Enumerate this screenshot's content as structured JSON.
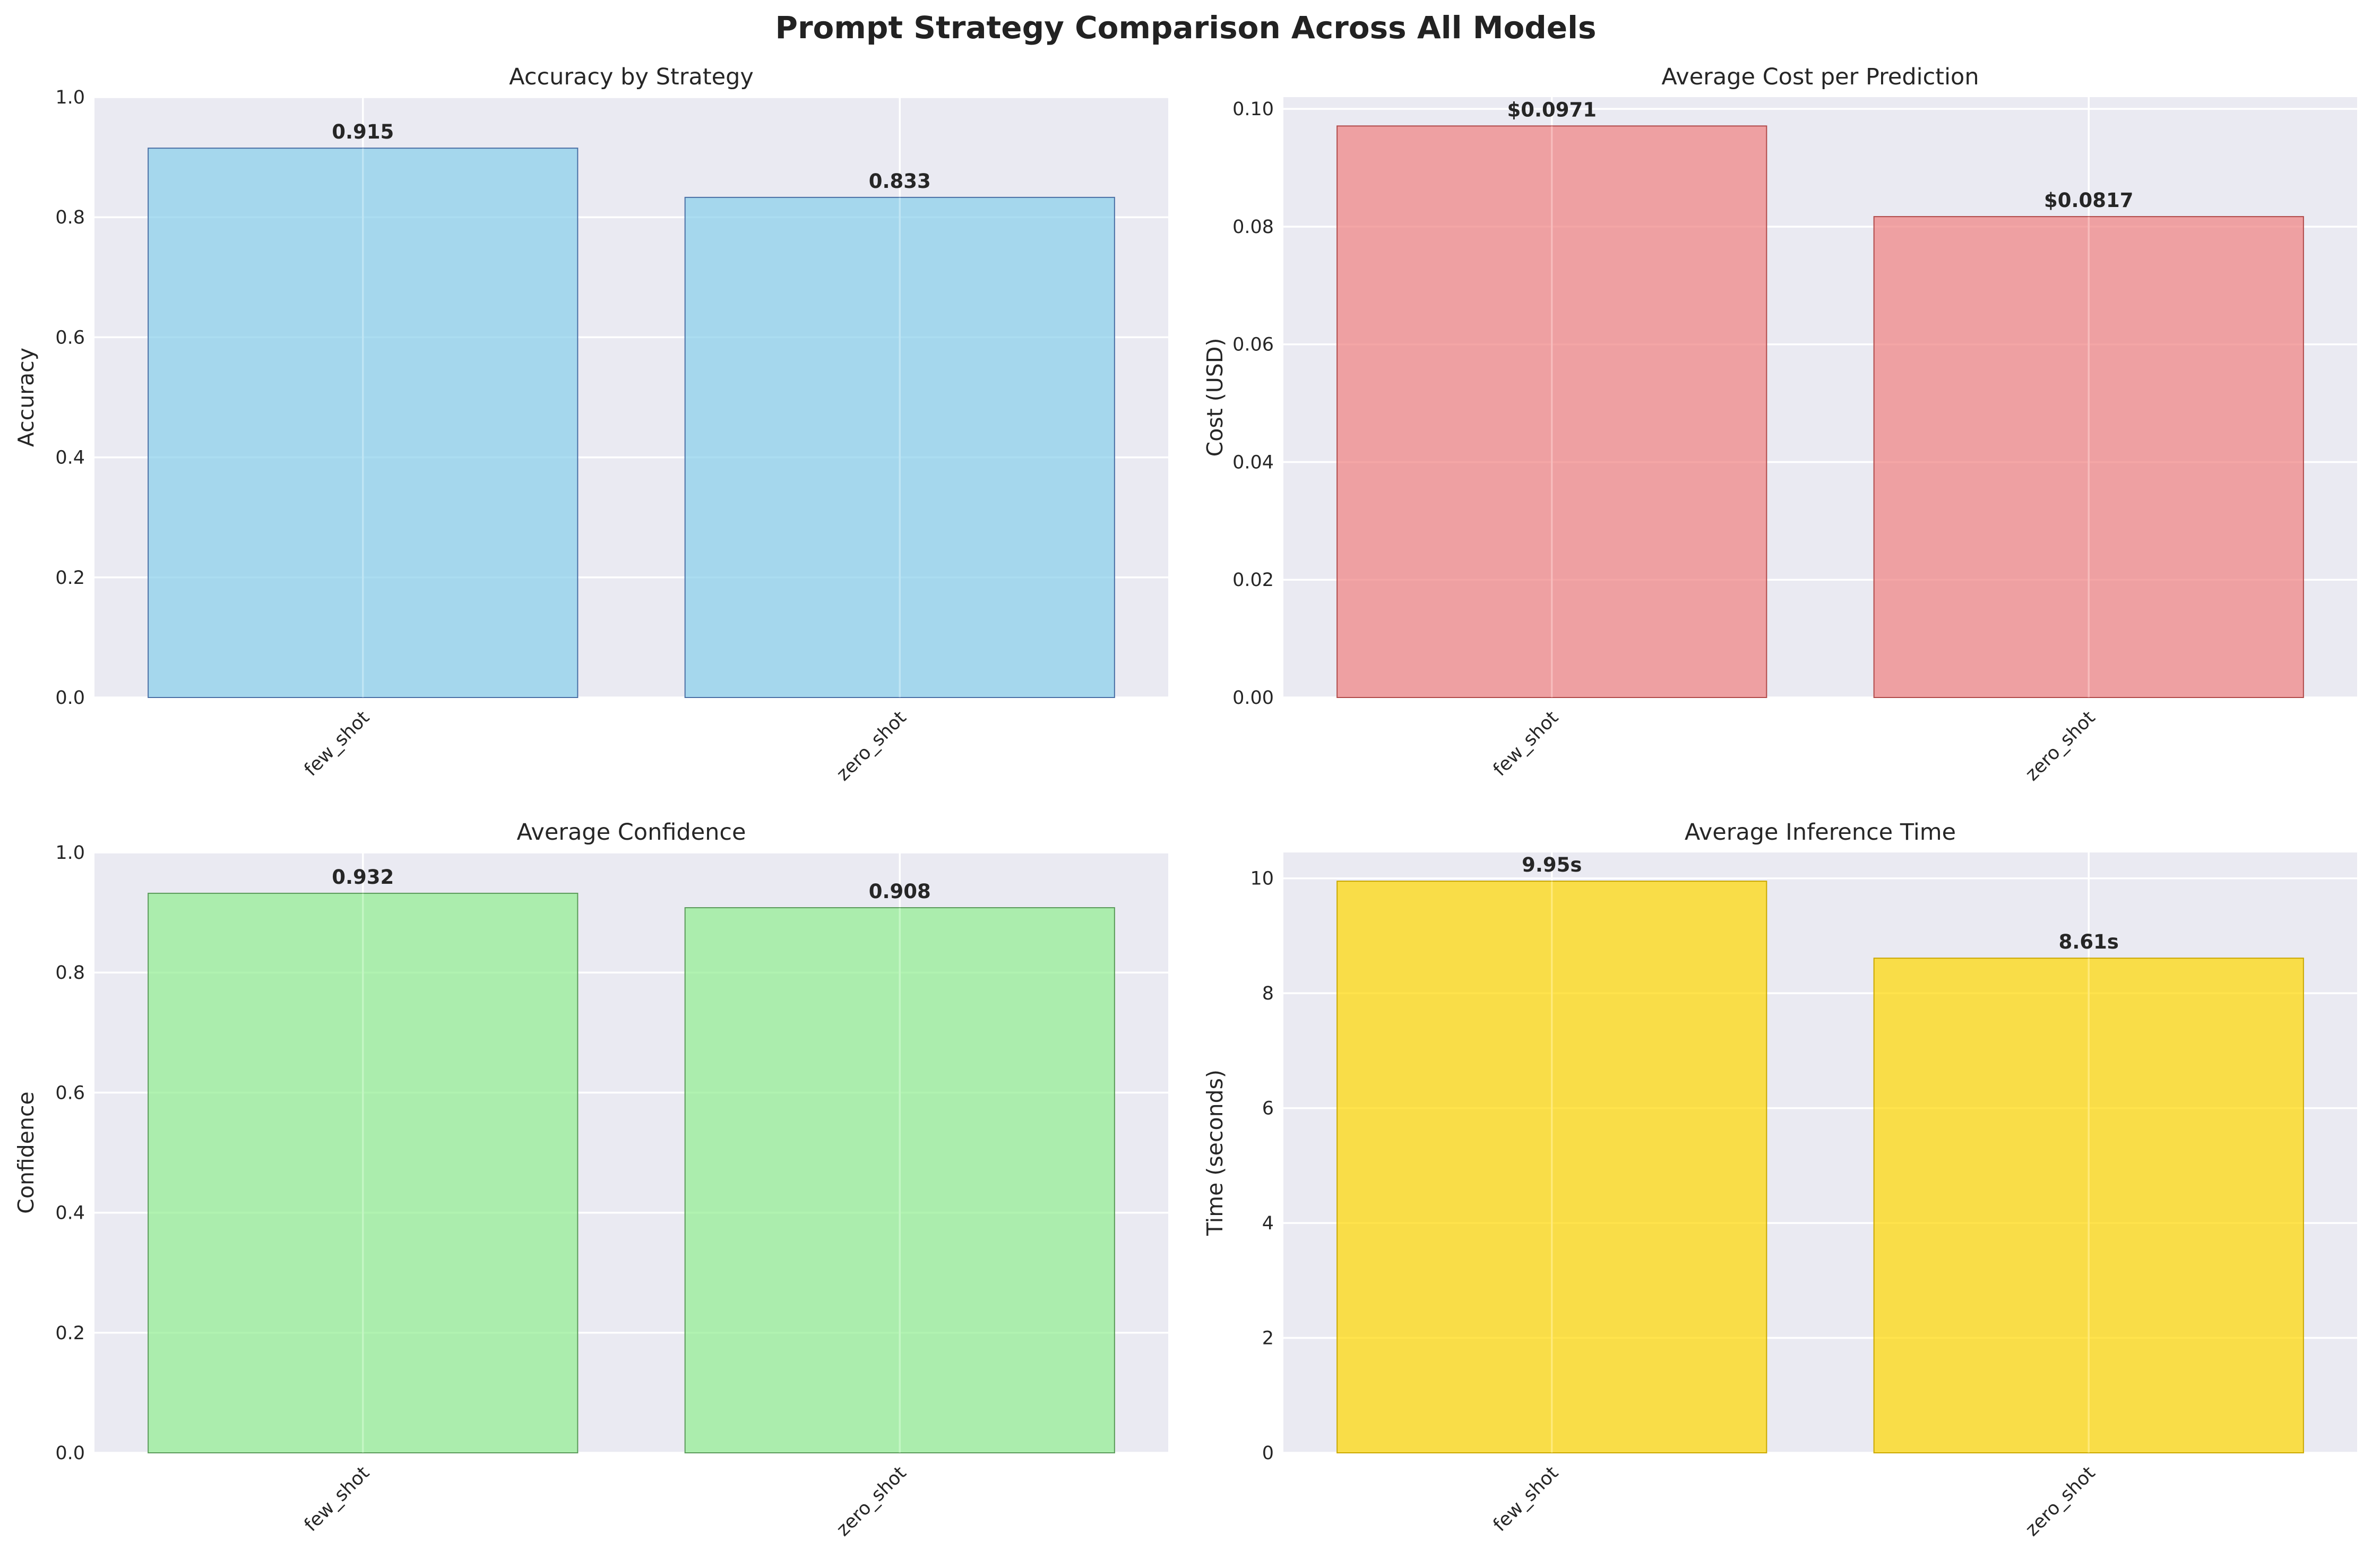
{
  "figure": {
    "title": "Prompt Strategy Comparison Across All Models"
  },
  "chart_data": [
    {
      "type": "bar",
      "title": "Accuracy by Strategy",
      "xlabel": "",
      "ylabel": "Accuracy",
      "categories": [
        "few_shot",
        "zero_shot"
      ],
      "values": [
        0.915,
        0.833
      ],
      "value_labels": [
        "0.915",
        "0.833"
      ],
      "ylim": [
        0,
        1.0
      ],
      "yticks": [
        0.0,
        0.2,
        0.4,
        0.6,
        0.8,
        1.0
      ],
      "ytick_labels": [
        "0.0",
        "0.2",
        "0.4",
        "0.6",
        "0.8",
        "1.0"
      ],
      "bar_color": "#87CEEB",
      "edge_color": "#4a6fa5",
      "grid": true
    },
    {
      "type": "bar",
      "title": "Average Cost per Prediction",
      "xlabel": "",
      "ylabel": "Cost (USD)",
      "categories": [
        "few_shot",
        "zero_shot"
      ],
      "values": [
        0.0971,
        0.0817
      ],
      "value_labels": [
        "$0.0971",
        "$0.0817"
      ],
      "ylim": [
        0,
        0.102
      ],
      "yticks": [
        0.0,
        0.02,
        0.04,
        0.06,
        0.08,
        0.1
      ],
      "ytick_labels": [
        "0.00",
        "0.02",
        "0.04",
        "0.06",
        "0.08",
        "0.10"
      ],
      "bar_color": "#F08080",
      "edge_color": "#b04a4a",
      "grid": true
    },
    {
      "type": "bar",
      "title": "Average Confidence",
      "xlabel": "",
      "ylabel": "Confidence",
      "categories": [
        "few_shot",
        "zero_shot"
      ],
      "values": [
        0.932,
        0.908
      ],
      "value_labels": [
        "0.932",
        "0.908"
      ],
      "ylim": [
        0,
        1.0
      ],
      "yticks": [
        0.0,
        0.2,
        0.4,
        0.6,
        0.8,
        1.0
      ],
      "ytick_labels": [
        "0.0",
        "0.2",
        "0.4",
        "0.6",
        "0.8",
        "1.0"
      ],
      "bar_color": "#90EE90",
      "edge_color": "#5a9a5a",
      "grid": true
    },
    {
      "type": "bar",
      "title": "Average Inference Time",
      "xlabel": "",
      "ylabel": "Time (seconds)",
      "categories": [
        "few_shot",
        "zero_shot"
      ],
      "values": [
        9.95,
        8.61
      ],
      "value_labels": [
        "9.95s",
        "8.61s"
      ],
      "ylim": [
        0,
        10.45
      ],
      "yticks": [
        0,
        2,
        4,
        6,
        8,
        10
      ],
      "ytick_labels": [
        "0",
        "2",
        "4",
        "6",
        "8",
        "10"
      ],
      "bar_color": "#FFD700",
      "edge_color": "#c9a800",
      "grid": true
    }
  ]
}
